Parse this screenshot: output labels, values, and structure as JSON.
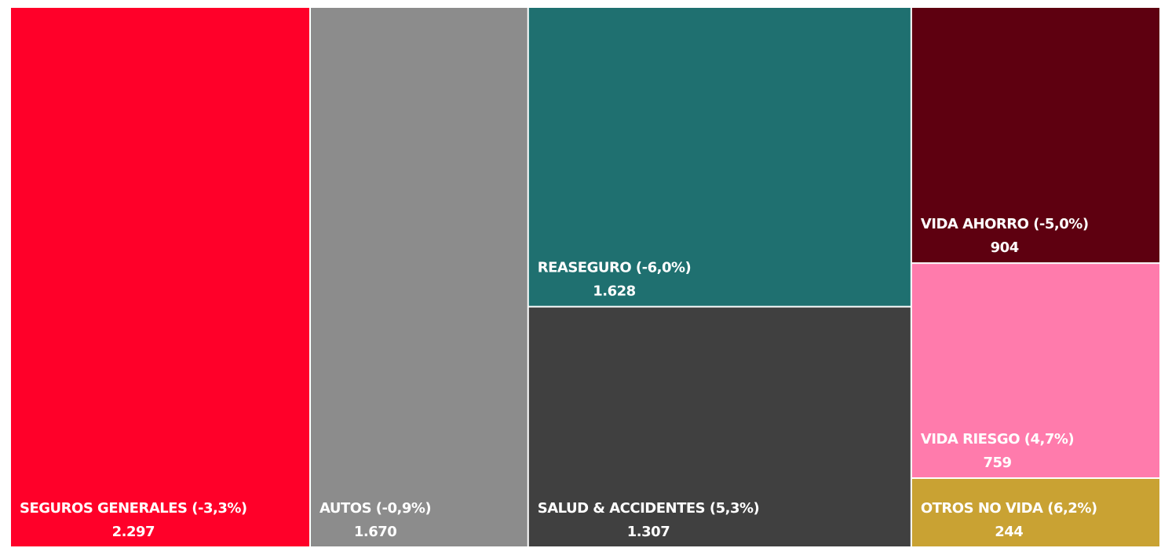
{
  "chart_data": {
    "type": "treemap",
    "categories": [
      "SEGUROS GENERALES  (-3,3%)",
      "AUTOS (-0,9%)",
      "REASEGURO (-6,0%)",
      "SALUD & ACCIDENTES (5,3%)",
      "VIDA AHORRO (-5,0%)",
      "VIDA RIESGO (4,7%)",
      "OTROS NO VIDA (6,2%)"
    ],
    "values": [
      2297,
      1670,
      1628,
      1307,
      904,
      759,
      244
    ],
    "value_labels": [
      "2.297",
      "1.670",
      "1.628",
      "1.307",
      "904",
      "759",
      "244"
    ],
    "colors": [
      "#ff0029",
      "#8c8c8c",
      "#1f7070",
      "#404040",
      "#5e0010",
      "#ff7bac",
      "#c9a233"
    ]
  }
}
